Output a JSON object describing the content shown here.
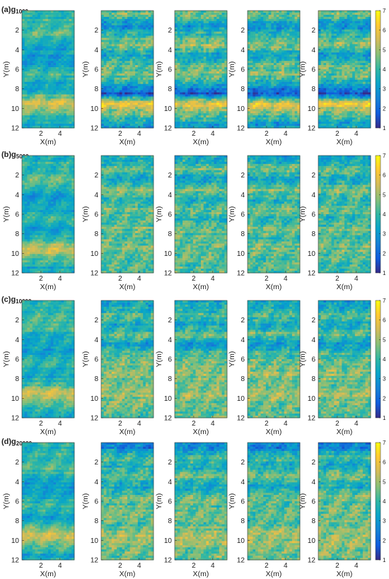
{
  "chart_data": {
    "type": "heatmap",
    "layout": "4 rows x 5 columns of heatmap panels, shared colorbar per row",
    "colormap": "parula",
    "xlabel": "X(m)",
    "ylabel": "Y(m)",
    "xlim": [
      0,
      5.5
    ],
    "ylim": [
      0,
      12
    ],
    "y_reversed": true,
    "xticks": [
      "2",
      "4"
    ],
    "yticks": [
      "2",
      "4",
      "6",
      "8",
      "10",
      "12"
    ],
    "colorbar": {
      "min": 1,
      "max": 7,
      "ticks": [
        "1",
        "2",
        "3",
        "4",
        "5",
        "6",
        "7"
      ]
    },
    "panel_rows": [
      {
        "label": "(a)",
        "symbol": "g",
        "subscript": "1000"
      },
      {
        "label": "(b)",
        "symbol": "g",
        "subscript": "5000"
      },
      {
        "label": "(c)",
        "symbol": "g",
        "subscript": "10000"
      },
      {
        "label": "(d)",
        "symbol": "g",
        "subscript": "20000"
      }
    ],
    "band_profiles_note": "approximate mean value per Y band (rows of 12 bands, Y=0..12), estimated from colours",
    "profiles": {
      "reference": [
        3.8,
        4.0,
        4.3,
        3.6,
        3.1,
        3.3,
        4.2,
        3.2,
        4.0,
        5.6,
        4.4,
        3.5
      ],
      "a": [
        4.5,
        2.8,
        3.9,
        5.0,
        3.2,
        4.3,
        4.6,
        3.5,
        1.8,
        6.0,
        4.6,
        3.2
      ],
      "b": [
        3.5,
        4.6,
        3.2,
        4.8,
        3.6,
        4.6,
        3.8,
        4.7,
        4.1,
        4.6,
        4.3,
        4.1
      ],
      "c": [
        3.4,
        4.3,
        3.3,
        4.6,
        3.0,
        4.3,
        4.5,
        4.9,
        4.5,
        5.0,
        4.6,
        4.3
      ],
      "d": [
        2.6,
        4.1,
        3.6,
        4.5,
        3.4,
        4.5,
        4.4,
        4.6,
        4.4,
        5.0,
        4.8,
        4.4
      ]
    }
  }
}
